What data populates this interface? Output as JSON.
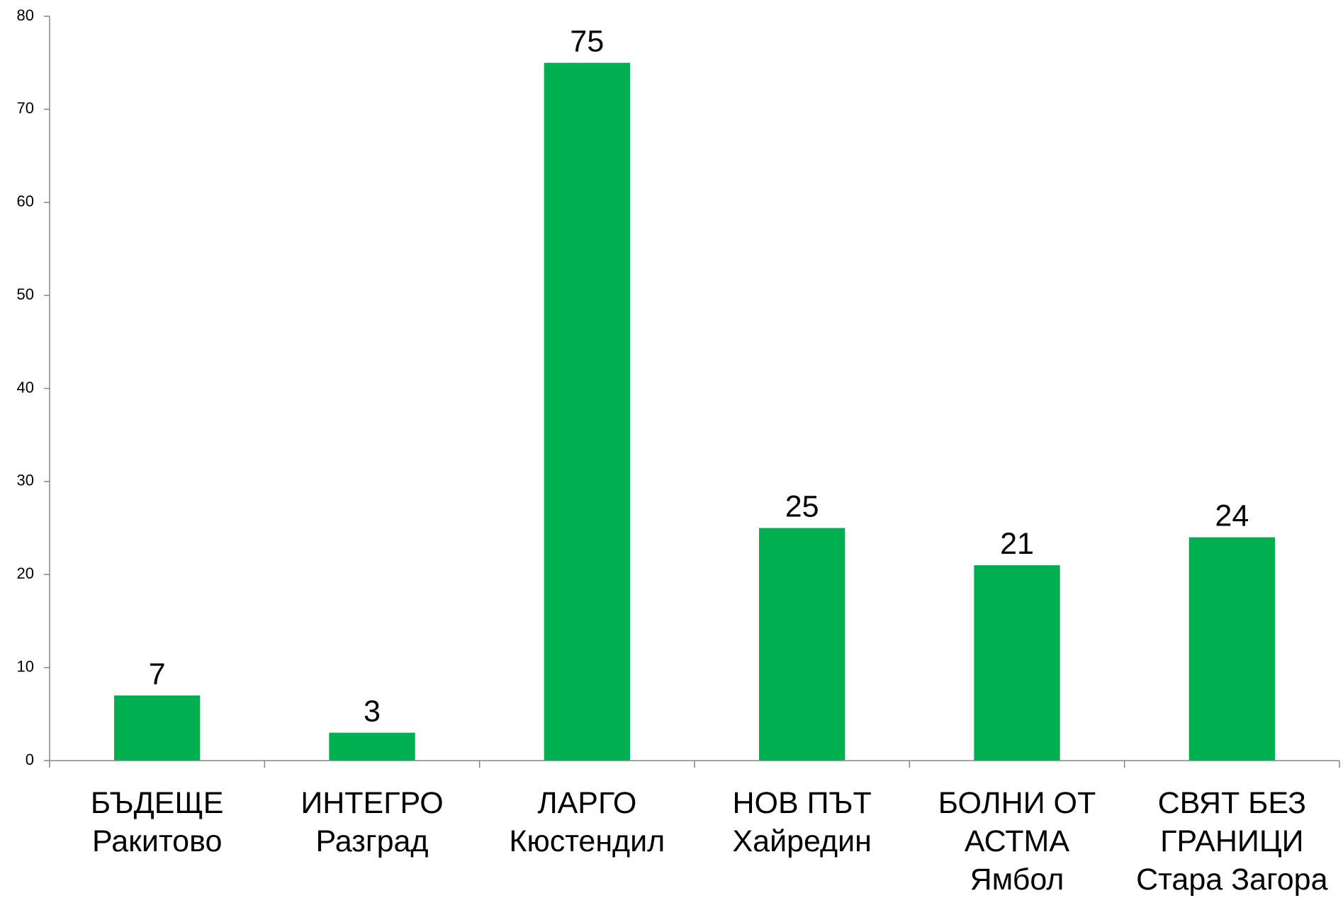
{
  "chart_data": {
    "type": "bar",
    "categories": [
      "БЪДЕЩЕ\nРакитово",
      "ИНТЕГРО\nРазград",
      "ЛАРГО\nКюстендил",
      "НОВ ПЪТ\nХайредин",
      "БОЛНИ ОТ\nАСТМА\nЯмбол",
      "СВЯТ БЕЗ\nГРАНИЦИ\nСтара Загора"
    ],
    "values": [
      7,
      3,
      75,
      25,
      21,
      24
    ],
    "color": "#00b050",
    "ylim": [
      0,
      80
    ],
    "yticks": [
      0,
      10,
      20,
      30,
      40,
      50,
      60,
      70,
      80
    ],
    "grid": false
  }
}
